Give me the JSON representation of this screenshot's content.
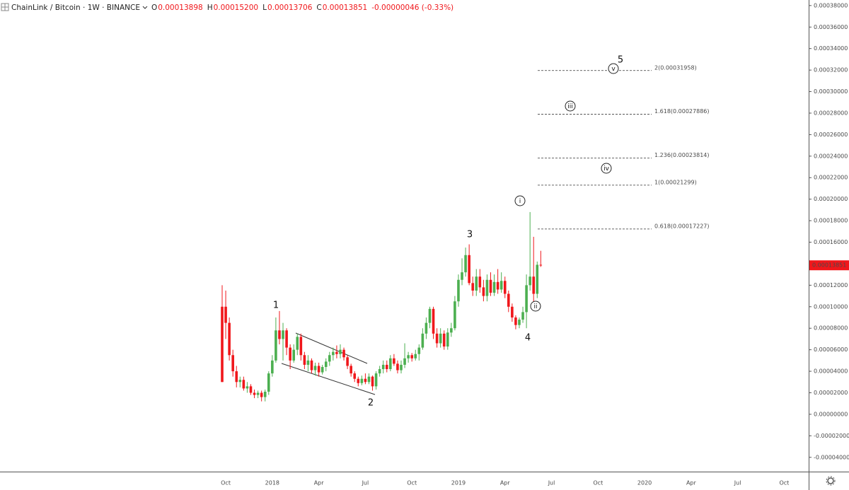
{
  "chart_data": {
    "type": "candlestick",
    "symbol": "ChainLink / Bitcoin · 1W · BINANCE",
    "header_fields": [
      {
        "key": "O",
        "value": "0.00013898"
      },
      {
        "key": "H",
        "value": "0.00015200"
      },
      {
        "key": "L",
        "value": "0.00013706"
      },
      {
        "key": "C",
        "value": "0.00013851"
      }
    ],
    "change": "-0.00000046 (-0.33%)",
    "up_color": "#4caf50",
    "down_color": "#f0171b",
    "categories": [
      null,
      "Oct",
      null,
      null,
      null,
      null,
      null,
      null,
      null,
      null,
      null,
      null,
      null,
      null,
      "2018",
      null,
      null,
      null,
      null,
      null,
      null,
      null,
      null,
      null,
      null,
      null,
      null,
      "Apr",
      null,
      null,
      null,
      null,
      null,
      null,
      null,
      null,
      null,
      null,
      null,
      null,
      "Jul",
      null,
      null,
      null,
      null,
      null,
      null,
      null,
      null,
      null,
      null,
      null,
      null,
      "Oct",
      null,
      null,
      null,
      null,
      null,
      null,
      null,
      null,
      null,
      null,
      null,
      null,
      "2019",
      null,
      null,
      null,
      null,
      null,
      null,
      null,
      null,
      null,
      null,
      null,
      null,
      "Apr",
      null,
      null,
      null,
      null,
      null,
      null,
      null,
      null,
      null,
      null
    ],
    "x_axis_future_labels": [
      "Jul",
      "Oct",
      "2020",
      "Apr",
      "Jul",
      "Oct"
    ],
    "open": [
      0.0001,
      0.0001,
      8.5e-05,
      5.5e-05,
      4e-05,
      3e-05,
      3.2e-05,
      2.4e-05,
      2.6e-05,
      2e-05,
      1.8e-05,
      2e-05,
      1.6e-05,
      2.1e-05,
      3.8e-05,
      5e-05,
      7.8e-05,
      7e-05,
      7.8e-05,
      6.2e-05,
      5e-05,
      6e-05,
      7.2e-05,
      5.5e-05,
      4.6e-05,
      5e-05,
      4.1e-05,
      4.5e-05,
      3.9e-05,
      4.4e-05,
      4.9e-05,
      5.5e-05,
      5.8e-05,
      5.6e-05,
      6e-05,
      5.3e-05,
      4.5e-05,
      3.8e-05,
      3.3e-05,
      2.9e-05,
      3.3e-05,
      3e-05,
      3.5e-05,
      2.6e-05,
      3.8e-05,
      4.2e-05,
      4.6e-05,
      4.2e-05,
      5.2e-05,
      4.7e-05,
      4.1e-05,
      4.6e-05,
      5.2e-05,
      5.5e-05,
      5.2e-05,
      5.6e-05,
      6.2e-05,
      7.5e-05,
      8.5e-05,
      9.8e-05,
      7.5e-05,
      6.6e-05,
      7.5e-05,
      6.3e-05,
      7.6e-05,
      8e-05,
      0.000105,
      0.000125,
      0.000132,
      0.000148,
      0.000122,
      0.000115,
      0.000128,
      0.000118,
      0.00011,
      0.000125,
      0.000113,
      0.000123,
      0.000116,
      0.000124,
      0.000112,
      0.0001,
      9e-05,
      8.3e-05,
      8.8e-05,
      9.5e-05,
      0.00012,
      0.000128,
      0.000112,
      0.00013898
    ],
    "high": [
      0.00012,
      0.000115,
      9e-05,
      6e-05,
      4.5e-05,
      3.5e-05,
      3.5e-05,
      3e-05,
      2.8e-05,
      2.3e-05,
      2.2e-05,
      2.2e-05,
      2.3e-05,
      4e-05,
      5.5e-05,
      9e-05,
      9.6e-05,
      8.5e-05,
      8e-05,
      6.5e-05,
      6.5e-05,
      7.5e-05,
      7.5e-05,
      5.8e-05,
      5.5e-05,
      5.2e-05,
      4.8e-05,
      4.8e-05,
      4.6e-05,
      5.2e-05,
      5.8e-05,
      6.2e-05,
      6.4e-05,
      6.5e-05,
      6.2e-05,
      5.5e-05,
      4.7e-05,
      4e-05,
      3.5e-05,
      3.6e-05,
      3.8e-05,
      3.8e-05,
      3.6e-05,
      4e-05,
      4.5e-05,
      5e-05,
      5e-05,
      5.5e-05,
      5.6e-05,
      5e-05,
      5e-05,
      6.6e-05,
      5.8e-05,
      5.7e-05,
      6e-05,
      6.5e-05,
      8e-05,
      9e-05,
      0.0001,
      0.0001,
      8e-05,
      8e-05,
      7.8e-05,
      8e-05,
      8.5e-05,
      0.00011,
      0.00013,
      0.000145,
      0.000155,
      0.000158,
      0.000128,
      0.000135,
      0.000135,
      0.000125,
      0.00013,
      0.000132,
      0.00013,
      0.000135,
      0.000132,
      0.000128,
      0.000115,
      0.000103,
      9.2e-05,
      9e-05,
      0.0001,
      0.00013,
      0.000188,
      0.000165,
      0.000142,
      0.000152
    ],
    "low": [
      3e-05,
      7e-05,
      5e-05,
      3.5e-05,
      2.5e-05,
      2.5e-05,
      2.2e-05,
      2e-05,
      1.8e-05,
      1.5e-05,
      1.5e-05,
      1.2e-05,
      1.2e-05,
      1.8e-05,
      3.5e-05,
      4.8e-05,
      6.5e-05,
      5e-05,
      5.5e-05,
      4.2e-05,
      4.8e-05,
      5.5e-05,
      5e-05,
      4.2e-05,
      4e-05,
      3.8e-05,
      3.6e-05,
      3.5e-05,
      3.7e-05,
      4e-05,
      4.5e-05,
      5e-05,
      5.2e-05,
      5.2e-05,
      5e-05,
      4.2e-05,
      3.5e-05,
      3e-05,
      2.6e-05,
      2.7e-05,
      2.8e-05,
      2.8e-05,
      2.2e-05,
      2.3e-05,
      3.5e-05,
      3.8e-05,
      3.9e-05,
      4e-05,
      4.5e-05,
      3.8e-05,
      3.8e-05,
      4.3e-05,
      4.8e-05,
      4.9e-05,
      5e-05,
      5e-05,
      6e-05,
      7e-05,
      8e-05,
      7e-05,
      6.2e-05,
      6.2e-05,
      6e-05,
      6e-05,
      7.2e-05,
      7.8e-05,
      0.0001,
      0.00012,
      0.000128,
      0.00012,
      0.00011,
      0.00011,
      0.000113,
      0.000105,
      0.000105,
      0.00011,
      0.00011,
      0.000112,
      0.000113,
      0.000108,
      9.5e-05,
      8.6e-05,
      7.9e-05,
      8e-05,
      8.5e-05,
      8e-05,
      0.000115,
      0.000105,
      0.000108,
      0.00013706
    ],
    "close": [
      3e-05,
      8.5e-05,
      5.5e-05,
      4e-05,
      3e-05,
      3.2e-05,
      2.4e-05,
      2.6e-05,
      2e-05,
      1.8e-05,
      2e-05,
      1.6e-05,
      2.1e-05,
      3.8e-05,
      5e-05,
      7.8e-05,
      7e-05,
      7.8e-05,
      6.2e-05,
      5e-05,
      6e-05,
      7.2e-05,
      5.5e-05,
      4.6e-05,
      5e-05,
      4.1e-05,
      4.5e-05,
      3.9e-05,
      4.4e-05,
      4.9e-05,
      5.5e-05,
      5.8e-05,
      5.6e-05,
      6e-05,
      5.3e-05,
      4.5e-05,
      3.8e-05,
      3.3e-05,
      2.9e-05,
      3.3e-05,
      3e-05,
      3.5e-05,
      2.6e-05,
      3.8e-05,
      4.2e-05,
      4.6e-05,
      4.2e-05,
      5.2e-05,
      4.7e-05,
      4.1e-05,
      4.6e-05,
      5.2e-05,
      5.5e-05,
      5.2e-05,
      5.6e-05,
      6.2e-05,
      7.5e-05,
      8.5e-05,
      9.8e-05,
      7.5e-05,
      6.6e-05,
      7.5e-05,
      6.3e-05,
      7.6e-05,
      8e-05,
      0.000105,
      0.000125,
      0.000132,
      0.000148,
      0.000122,
      0.000115,
      0.000128,
      0.000118,
      0.00011,
      0.000125,
      0.000113,
      0.000123,
      0.000116,
      0.000124,
      0.000112,
      0.0001,
      9e-05,
      8.3e-05,
      8.8e-05,
      9.5e-05,
      0.00012,
      0.000128,
      0.000112,
      0.000139,
      0.00013851
    ],
    "ylim": [
      -5.33e-05,
      0.00038516
    ],
    "yticks": [
      {
        "value": 0.00038,
        "label": "0.00038000"
      },
      {
        "value": 0.00036,
        "label": "0.00036000"
      },
      {
        "value": 0.00034,
        "label": "0.00034000"
      },
      {
        "value": 0.00032,
        "label": "0.00032000"
      },
      {
        "value": 0.0003,
        "label": "0.00030000"
      },
      {
        "value": 0.00028,
        "label": "0.00028000"
      },
      {
        "value": 0.00026,
        "label": "0.00026000"
      },
      {
        "value": 0.00024,
        "label": "0.00024000"
      },
      {
        "value": 0.00022,
        "label": "0.00022000"
      },
      {
        "value": 0.0002,
        "label": "0.00020000"
      },
      {
        "value": 0.00018,
        "label": "0.00018000"
      },
      {
        "value": 0.00016,
        "label": "0.00016000"
      },
      {
        "value": 0.00014,
        "label": "0.00014000"
      },
      {
        "value": 0.00012,
        "label": "0.00012000"
      },
      {
        "value": 0.0001,
        "label": "0.00010000"
      },
      {
        "value": 8e-05,
        "label": "0.00008000"
      },
      {
        "value": 6e-05,
        "label": "0.00006000"
      },
      {
        "value": 4e-05,
        "label": "0.00004000"
      },
      {
        "value": 2e-05,
        "label": "0.00002000"
      },
      {
        "value": 0,
        "label": "0.00000000"
      },
      {
        "value": -2e-05,
        "label": "-0.00002000"
      },
      {
        "value": -4e-05,
        "label": "-0.00004000"
      }
    ],
    "fib_levels": [
      {
        "value": 0.00031958,
        "label": "2(0.00031958)"
      },
      {
        "value": 0.00027886,
        "label": "1.618(0.00027886)"
      },
      {
        "value": 0.00023814,
        "label": "1.236(0.00023814)"
      },
      {
        "value": 0.00021299,
        "label": "1(0.00021299)"
      },
      {
        "value": 0.00017227,
        "label": "0.618(0.00017227)"
      }
    ],
    "wave_labels": [
      "1",
      "2",
      "3",
      "4",
      "5"
    ],
    "wave_circles": [
      "i",
      "ii",
      "iii",
      "iv",
      "v"
    ]
  }
}
